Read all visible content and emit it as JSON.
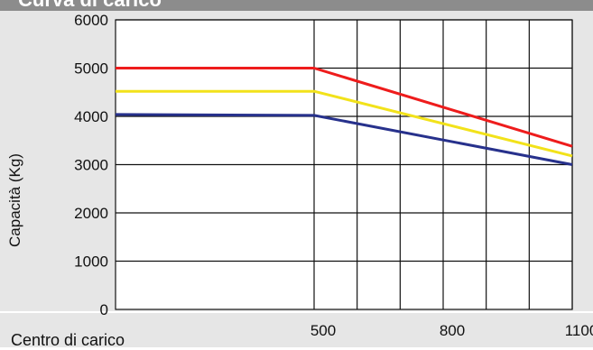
{
  "chart_data": {
    "type": "line",
    "title": "Curva di carico",
    "ylabel": "Capacità (Kg)",
    "xlabel": "Centro di carico",
    "xlim": [
      0,
      1100
    ],
    "ylim": [
      0,
      6000
    ],
    "y_ticks": [
      "0",
      "1000",
      "2000",
      "3000",
      "4000",
      "5000",
      "6000"
    ],
    "x_ticks": [
      {
        "value": 500,
        "label": "500"
      },
      {
        "value": 800,
        "label": "800"
      },
      {
        "value": 1100,
        "label": "1100"
      }
    ],
    "x_gridlines": [
      500,
      600,
      700,
      800,
      900,
      1000,
      1100
    ],
    "y_gridlines": [
      1000,
      2000,
      3000,
      4000,
      5000,
      6000
    ],
    "grid": true,
    "series": [
      {
        "color": "#ee1c1c",
        "x": [
          0,
          500,
          1100
        ],
        "y": [
          5000,
          5000,
          3380
        ]
      },
      {
        "color": "#f2e21a",
        "x": [
          0,
          500,
          1100
        ],
        "y": [
          4520,
          4520,
          3180
        ]
      },
      {
        "color": "#27318c",
        "x": [
          0,
          500,
          1100
        ],
        "y": [
          4040,
          4020,
          3000
        ]
      }
    ]
  }
}
